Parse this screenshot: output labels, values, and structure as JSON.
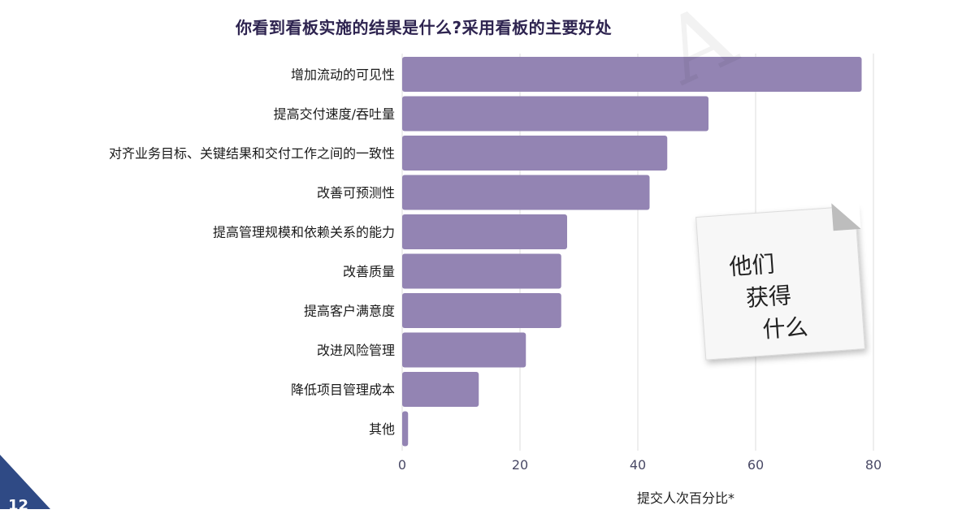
{
  "chart_data": {
    "type": "bar",
    "orientation": "horizontal",
    "title": "你看到看板实施的结果是什么?采用看板的主要好处",
    "xlabel": "提交人次百分比*",
    "ylabel": "",
    "categories": [
      "增加流动的可见性",
      "提高交付速度/吞吐量",
      "对齐业务目标、关键结果和交付工作之间的一致性",
      "改善可预测性",
      "提高管理规模和依赖关系的能力",
      "改善质量",
      "提高客户满意度",
      "改进风险管理",
      "降低项目管理成本",
      "其他"
    ],
    "values": [
      78,
      52,
      45,
      42,
      28,
      27,
      27,
      21,
      13,
      1
    ],
    "xlim": [
      0,
      80
    ],
    "tick_labels": [
      "0",
      "20",
      "40",
      "60",
      "80"
    ],
    "grid": true,
    "bar_color": "#9384b3"
  },
  "note": {
    "line1": "他们",
    "line2": "获得",
    "line3": "什么"
  },
  "page_number": "12"
}
